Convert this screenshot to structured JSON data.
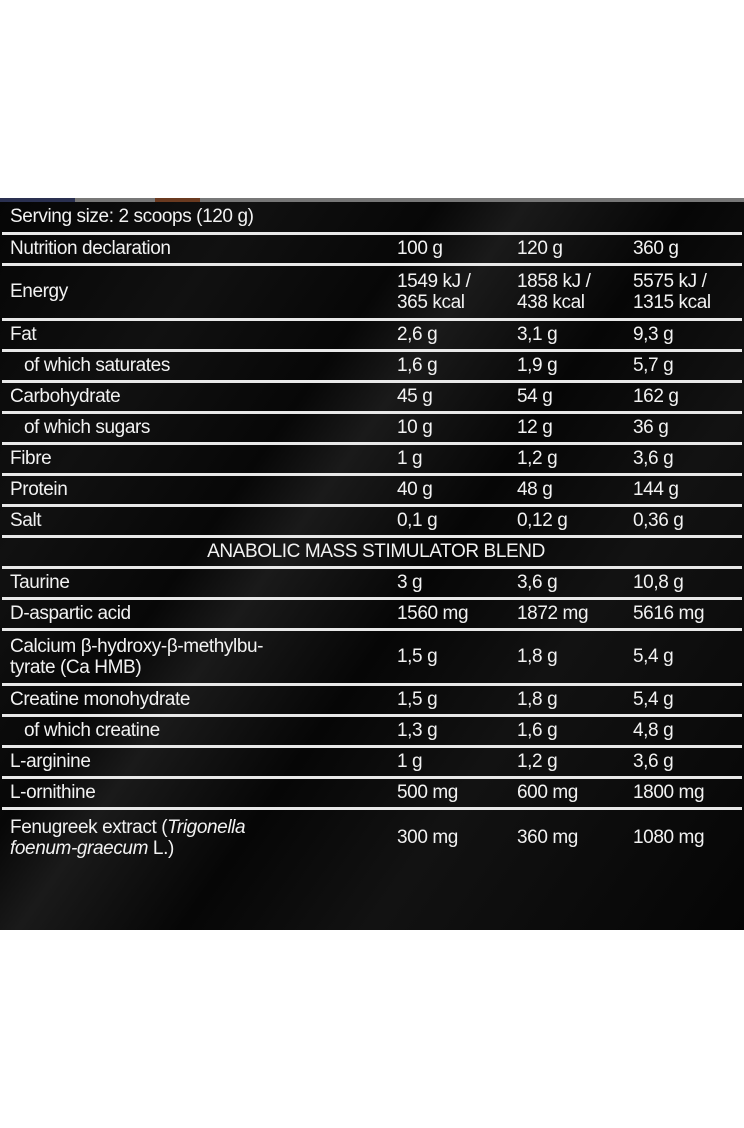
{
  "serving_size": "Serving size: 2 scoops (120 g)",
  "header": {
    "label": "Nutrition declaration",
    "cols": [
      "100 g",
      "120 g",
      "360 g"
    ]
  },
  "energy": {
    "label": "Energy",
    "values": [
      [
        "1549 kJ /",
        "365 kcal"
      ],
      [
        "1858 kJ /",
        "438 kcal"
      ],
      [
        "5575 kJ /",
        "1315 kcal"
      ]
    ]
  },
  "rows": [
    {
      "label": "Fat",
      "values": [
        "2,6 g",
        "3,1 g",
        "9,3 g"
      ]
    },
    {
      "label": "of which saturates",
      "values": [
        "1,6 g",
        "1,9 g",
        "5,7 g"
      ]
    },
    {
      "label": "Carbohydrate",
      "values": [
        "45 g",
        "54 g",
        "162 g"
      ]
    },
    {
      "label": "of which sugars",
      "values": [
        "10 g",
        "12 g",
        "36 g"
      ]
    },
    {
      "label": "Fibre",
      "values": [
        "1 g",
        "1,2 g",
        "3,6 g"
      ]
    },
    {
      "label": "Protein",
      "values": [
        "40 g",
        "48 g",
        "144 g"
      ]
    },
    {
      "label": "Salt",
      "values": [
        "0,1 g",
        "0,12 g",
        "0,36 g"
      ]
    }
  ],
  "blend_title": "ANABOLIC MASS STIMULATOR BLEND",
  "blend_rows": [
    {
      "label": "Taurine",
      "values": [
        "3 g",
        "3,6 g",
        "10,8 g"
      ]
    },
    {
      "label": "D-aspartic acid",
      "values": [
        "1560 mg",
        "1872 mg",
        "5616 mg"
      ]
    },
    {
      "label": [
        "Calcium β-hydroxy-β-methylbu-",
        "tyrate (Ca HMB)"
      ],
      "values": [
        "1,5 g",
        "1,8 g",
        "5,4 g"
      ]
    },
    {
      "label": "Creatine monohydrate",
      "values": [
        "1,5 g",
        "1,8 g",
        "5,4 g"
      ]
    },
    {
      "label": "of which creatine",
      "values": [
        "1,3 g",
        "1,6 g",
        "4,8 g"
      ]
    },
    {
      "label": "L-arginine",
      "values": [
        "1 g",
        "1,2 g",
        "3,6 g"
      ]
    },
    {
      "label": "L-ornithine",
      "values": [
        "500 mg",
        "600 mg",
        "1800 mg"
      ]
    },
    {
      "label": {
        "pre": "Fenugreek extract (",
        "italic1": "Trigonella",
        "italic2": "foenum-graecum",
        "post": " L.)"
      },
      "values": [
        "300 mg",
        "360 mg",
        "1080 mg"
      ]
    }
  ]
}
